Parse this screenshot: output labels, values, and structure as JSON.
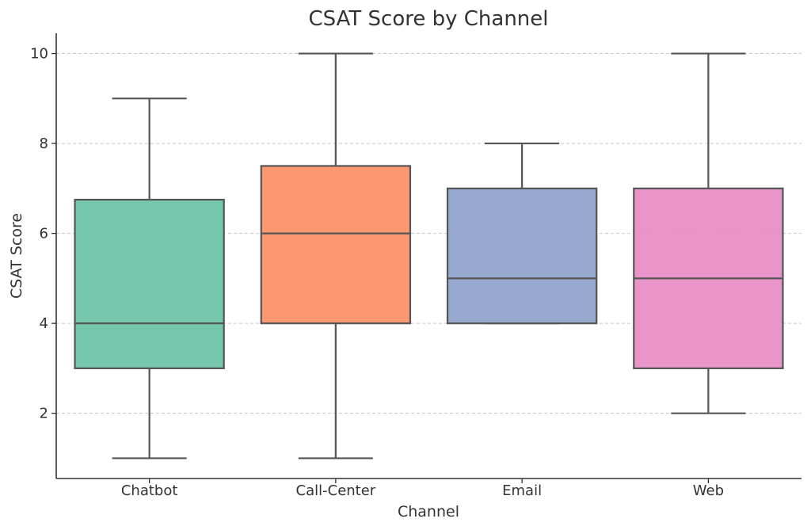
{
  "chart_data": {
    "type": "box",
    "title": "CSAT Score by Channel",
    "xlabel": "Channel",
    "ylabel": "CSAT Score",
    "ylim": [
      0.55,
      10.45
    ],
    "yticks": [
      2,
      4,
      6,
      8,
      10
    ],
    "grid": true,
    "categories": [
      "Chatbot",
      "Call-Center",
      "Email",
      "Web"
    ],
    "boxes": [
      {
        "name": "Chatbot",
        "min": 1,
        "q1": 3,
        "median": 4,
        "q3": 6.75,
        "max": 9,
        "color": "#66c2a5"
      },
      {
        "name": "Call-Center",
        "min": 1,
        "q1": 4,
        "median": 6,
        "q3": 7.5,
        "max": 10,
        "color": "#fc8d62"
      },
      {
        "name": "Email",
        "min": 4,
        "q1": 4,
        "median": 5,
        "q3": 7,
        "max": 8,
        "color": "#8da0cb"
      },
      {
        "name": "Web",
        "min": 2,
        "q1": 3,
        "median": 5,
        "q3": 7,
        "max": 10,
        "color": "#e78ac3"
      }
    ]
  }
}
